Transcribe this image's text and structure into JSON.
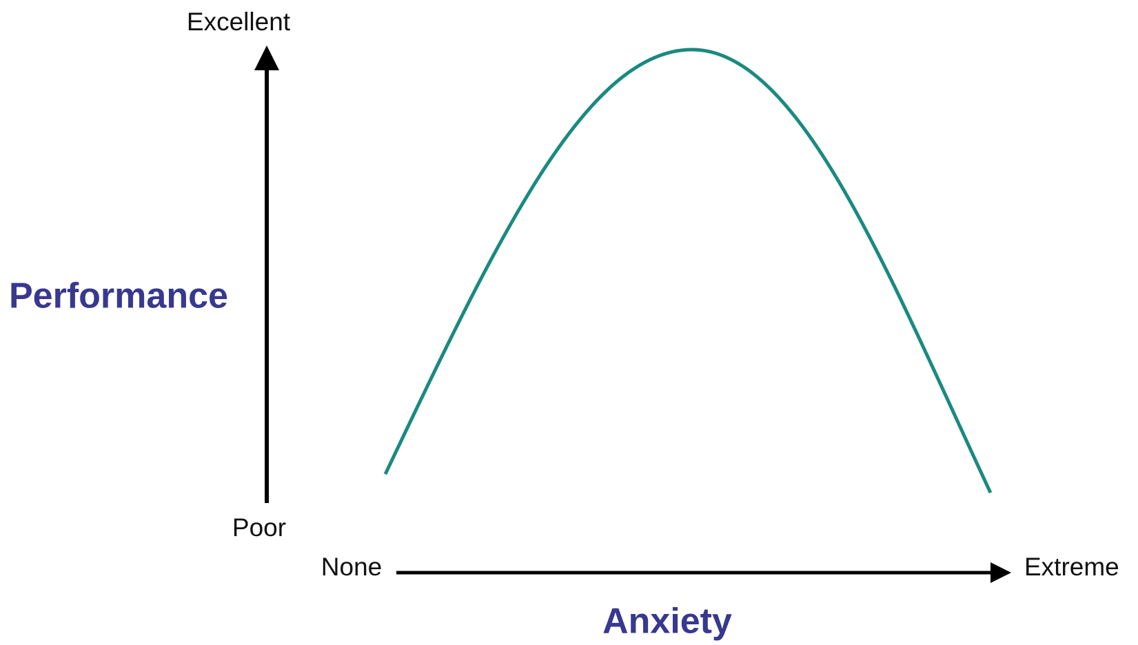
{
  "y_axis": {
    "label": "Performance",
    "top": "Excellent",
    "bottom": "Poor"
  },
  "x_axis": {
    "label": "Anxiety",
    "start": "None",
    "end": "Extreme"
  }
}
